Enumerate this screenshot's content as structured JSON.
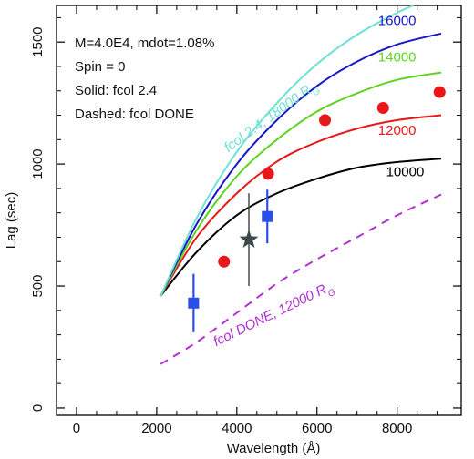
{
  "chart_data": {
    "type": "line",
    "xlabel": "Wavelength (Å)",
    "ylabel": "Lag (sec)",
    "xlim": [
      -500,
      9600
    ],
    "ylim": [
      -30,
      1650
    ],
    "xticks": [
      0,
      2000,
      4000,
      6000,
      8000
    ],
    "yticks": [
      0,
      500,
      1000,
      1500
    ],
    "annotations": [
      "M=4.0E4, mdot=1.08%",
      "Spin = 0",
      "Solid: fcol 2.4",
      "Dashed: fcol DONE"
    ],
    "colors": {
      "black": "#000000",
      "red": "#e8181a",
      "green": "#5fd321",
      "blue": "#1717c8",
      "cyan": "#6fe0d3",
      "purple": "#b030d0",
      "star": "#3a4a4a",
      "square": "#2a4ee8",
      "errbar": "#4a4a4a"
    },
    "series": [
      {
        "name": "10000",
        "style": "solid",
        "color_key": "black",
        "x": [
          2100,
          3000,
          4000,
          5000,
          6000,
          7000,
          8000,
          9100
        ],
        "y": [
          460,
          640,
          790,
          880,
          940,
          985,
          1008,
          1022
        ]
      },
      {
        "name": "12000",
        "style": "solid",
        "color_key": "red",
        "x": [
          2100,
          3000,
          4000,
          5000,
          6000,
          7000,
          8000,
          9100
        ],
        "y": [
          460,
          700,
          880,
          1010,
          1090,
          1145,
          1180,
          1200
        ]
      },
      {
        "name": "14000",
        "style": "solid",
        "color_key": "green",
        "x": [
          2100,
          3000,
          4000,
          5000,
          6000,
          7000,
          8000,
          9100
        ],
        "y": [
          460,
          730,
          950,
          1100,
          1215,
          1290,
          1345,
          1375
        ]
      },
      {
        "name": "16000",
        "style": "solid",
        "color_key": "blue",
        "x": [
          2100,
          3000,
          4000,
          5000,
          6000,
          7000,
          8000,
          9100
        ],
        "y": [
          460,
          755,
          1000,
          1180,
          1320,
          1420,
          1490,
          1535
        ]
      },
      {
        "name": "fcol 2.4, 18000 R",
        "name_subscript": "G",
        "style": "solid",
        "color_key": "cyan",
        "x": [
          2100,
          3000,
          4000,
          5000,
          6000,
          7000,
          8000,
          8400
        ],
        "y": [
          460,
          780,
          1050,
          1250,
          1410,
          1530,
          1620,
          1650
        ]
      },
      {
        "name": "fcol DONE, 12000 R",
        "name_subscript": "G",
        "style": "dashed",
        "color_key": "purple",
        "x": [
          2100,
          3000,
          4000,
          5000,
          6000,
          7000,
          8000,
          9100
        ],
        "y": [
          180,
          270,
          390,
          510,
          610,
          700,
          790,
          875
        ]
      }
    ],
    "circles": {
      "color_key": "red",
      "x": [
        3680,
        4780,
        6200,
        7650,
        9060
      ],
      "y": [
        600,
        960,
        1180,
        1230,
        1295
      ]
    },
    "squares": {
      "color_key": "square",
      "points": [
        {
          "x": 2920,
          "y": 430,
          "yerr": 120
        },
        {
          "x": 4760,
          "y": 785,
          "yerr": 110
        }
      ]
    },
    "stars": {
      "color_key": "star",
      "points": [
        {
          "x": 4300,
          "y": 690,
          "yerr": 190
        }
      ]
    },
    "series_labels": [
      {
        "series_index": 0,
        "x": 8200,
        "y": 950,
        "rotation": 0
      },
      {
        "series_index": 1,
        "x": 8000,
        "y": 1120,
        "rotation": 0
      },
      {
        "series_index": 2,
        "x": 8000,
        "y": 1420,
        "rotation": 0
      },
      {
        "series_index": 3,
        "x": 8000,
        "y": 1570,
        "rotation": 0
      },
      {
        "series_index": 4,
        "x": 4900,
        "y": 1180,
        "rotation": -36
      },
      {
        "series_index": 5,
        "x": 4950,
        "y": 370,
        "rotation": -26
      }
    ]
  }
}
